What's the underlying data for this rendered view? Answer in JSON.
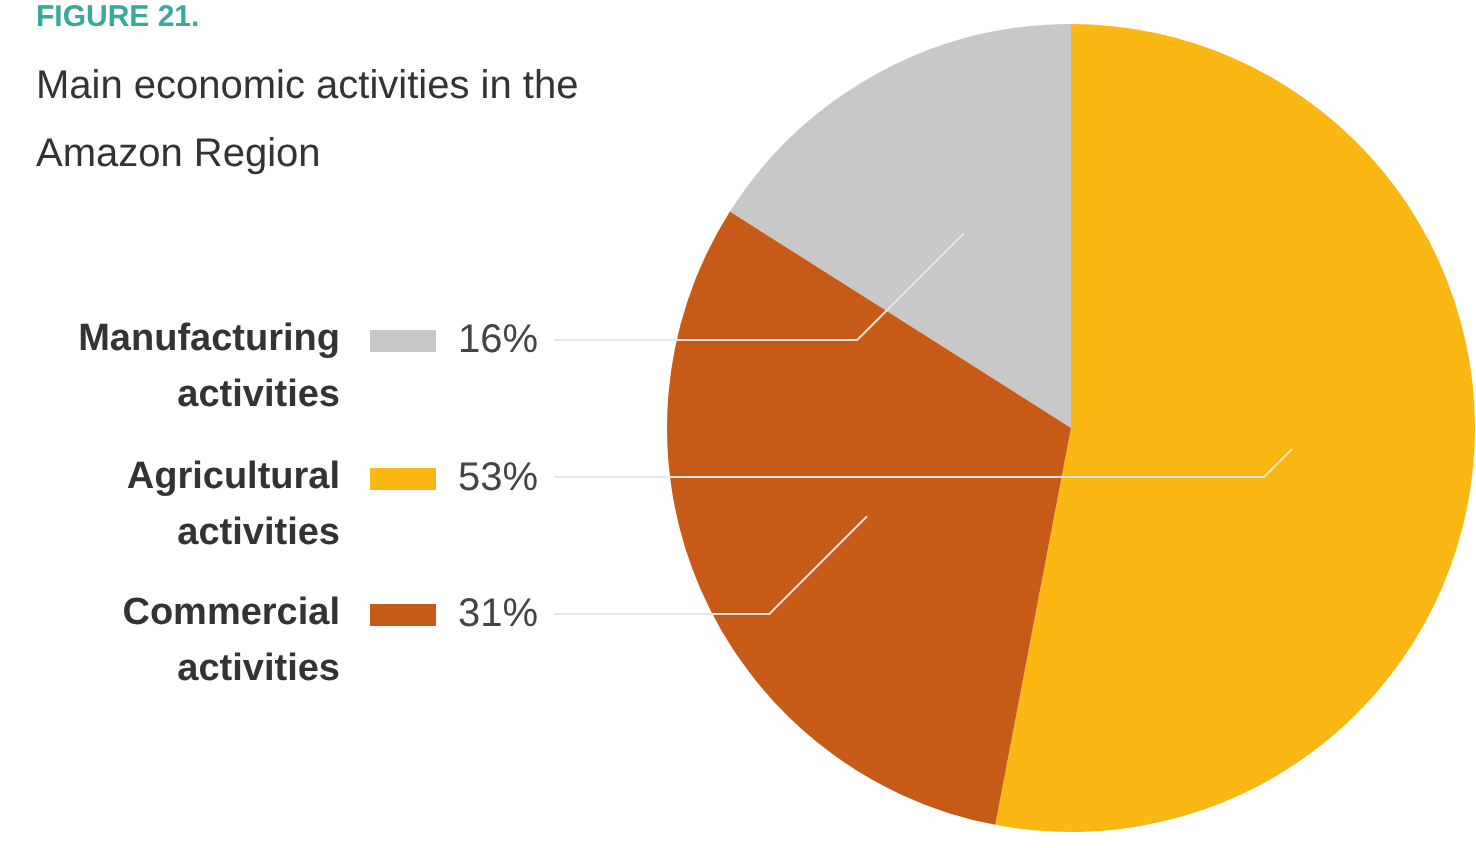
{
  "chart_data": {
    "type": "pie",
    "title": "Main economic activities in the Amazon Region",
    "annotations": [
      "FIGURE 21."
    ],
    "categories": [
      "Manufacturing activities",
      "Agricultural activities",
      "Commercial activities"
    ],
    "values": [
      16,
      53,
      31
    ],
    "colors": [
      "#c8c8c8",
      "#fbb714",
      "#c85a17"
    ],
    "value_labels": [
      "16%",
      "53%",
      "31%"
    ],
    "legend": "left"
  }
}
